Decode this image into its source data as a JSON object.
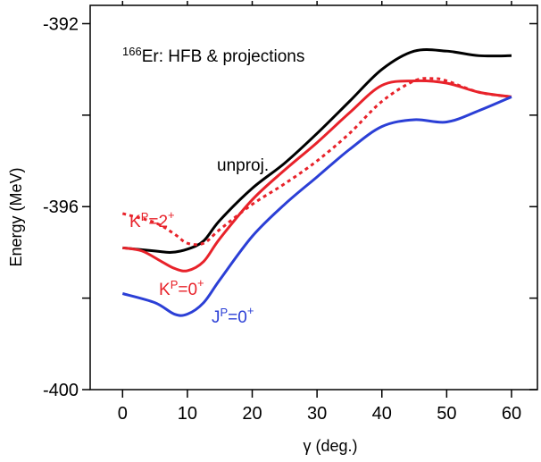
{
  "chart_data": {
    "type": "line",
    "title": "",
    "xlabel": "γ (deg.)",
    "ylabel": "Energy (MeV)",
    "xlim": [
      -5,
      64
    ],
    "ylim": [
      -400,
      -391.6
    ],
    "x_ticks": [
      0,
      10,
      20,
      30,
      40,
      50,
      60
    ],
    "y_ticks_labeled": [
      -392,
      -396,
      -400
    ],
    "y_ticks_minor": [
      -394,
      -398
    ],
    "grid": false,
    "legend": "none",
    "annotations": {
      "nucleus_mass": "166",
      "nucleus_rest": "Er: HFB & projections",
      "unproj": "unproj.",
      "k2_base": "K",
      "k2_sup1": "P",
      "k2_mid": "=2",
      "k2_sup2": "+",
      "k0_base": "K",
      "k0_sup1": "P",
      "k0_mid": "=0",
      "k0_sup2": "+",
      "j0_base": "J",
      "j0_sup1": "P",
      "j0_mid": "=0",
      "j0_sup2": "+"
    },
    "series": [
      {
        "id": "unproj",
        "color": "#000000",
        "dash": "solid",
        "x": [
          0,
          5,
          7.5,
          10,
          12.5,
          15,
          20,
          25,
          30,
          35,
          40,
          45,
          50,
          55,
          60
        ],
        "y": [
          -396.9,
          -396.97,
          -397,
          -396.93,
          -396.75,
          -396.3,
          -395.6,
          -395.05,
          -394.4,
          -393.7,
          -393,
          -392.6,
          -392.6,
          -392.7,
          -392.7
        ]
      },
      {
        "id": "kp2",
        "color": "#e8222a",
        "dash": "dotted",
        "x": [
          0,
          5,
          8,
          10,
          12.5,
          15,
          20,
          25,
          30,
          35,
          40,
          45,
          48,
          50,
          55,
          60
        ],
        "y": [
          -396.15,
          -396.35,
          -396.6,
          -396.8,
          -396.8,
          -396.5,
          -395.95,
          -395.5,
          -395,
          -394.4,
          -393.7,
          -393.25,
          -393.2,
          -393.25,
          -393.5,
          -393.6
        ]
      },
      {
        "id": "kp0",
        "color": "#e8222a",
        "dash": "solid",
        "x": [
          0,
          3,
          6,
          8,
          10,
          12.5,
          15,
          20,
          25,
          30,
          35,
          40,
          45,
          50,
          55,
          60
        ],
        "y": [
          -396.9,
          -396.97,
          -397.2,
          -397.35,
          -397.4,
          -397.2,
          -396.7,
          -395.85,
          -395.2,
          -394.6,
          -393.95,
          -393.35,
          -393.25,
          -393.3,
          -393.5,
          -393.6
        ]
      },
      {
        "id": "jp0",
        "color": "#2b3fd6",
        "dash": "solid",
        "x": [
          0,
          5,
          8,
          10,
          12.5,
          15,
          20,
          25,
          30,
          35,
          40,
          45,
          50,
          55,
          60
        ],
        "y": [
          -397.9,
          -398.1,
          -398.35,
          -398.35,
          -398.1,
          -397.6,
          -396.65,
          -395.95,
          -395.35,
          -394.75,
          -394.25,
          -394.1,
          -394.15,
          -393.9,
          -393.6
        ]
      }
    ]
  }
}
